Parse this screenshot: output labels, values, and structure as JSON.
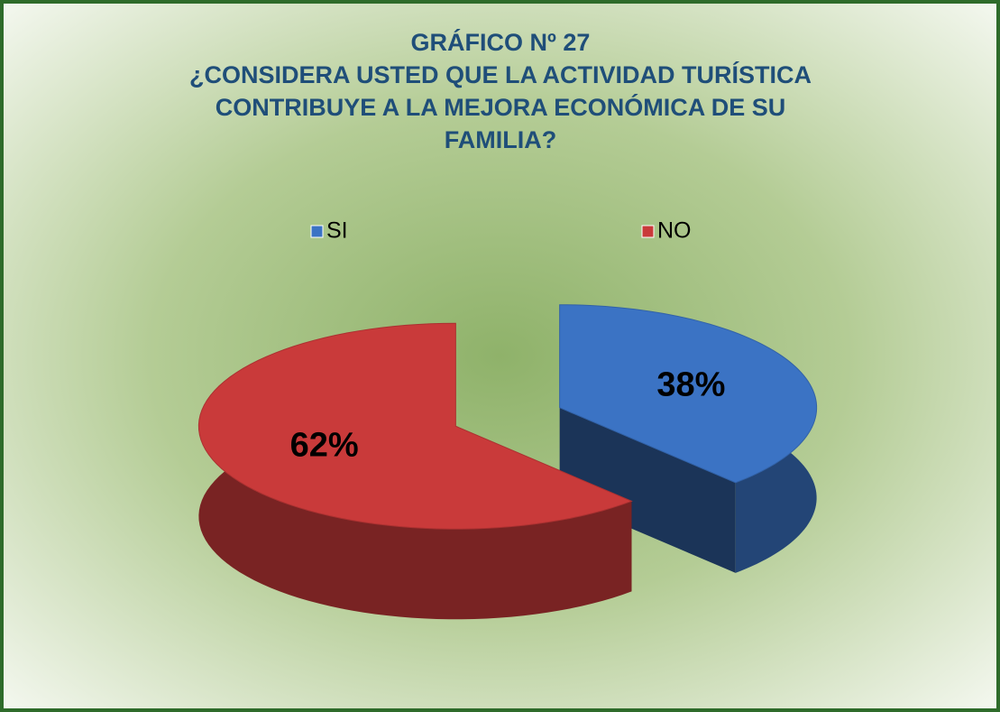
{
  "chart_data": {
    "type": "pie",
    "title": [
      "GRÁFICO Nº 27",
      "¿CONSIDERA USTED QUE LA ACTIVIDAD TURÍSTICA",
      "CONTRIBUYE A LA MEJORA ECONÓMICA DE SU",
      "FAMILIA?"
    ],
    "categories": [
      "SI",
      "NO"
    ],
    "values": [
      38,
      62
    ],
    "value_labels": [
      "38%",
      "62%"
    ],
    "colors": [
      "#3b73c4",
      "#c93a3a"
    ],
    "legend": "top",
    "three_d": true,
    "exploded": true
  }
}
